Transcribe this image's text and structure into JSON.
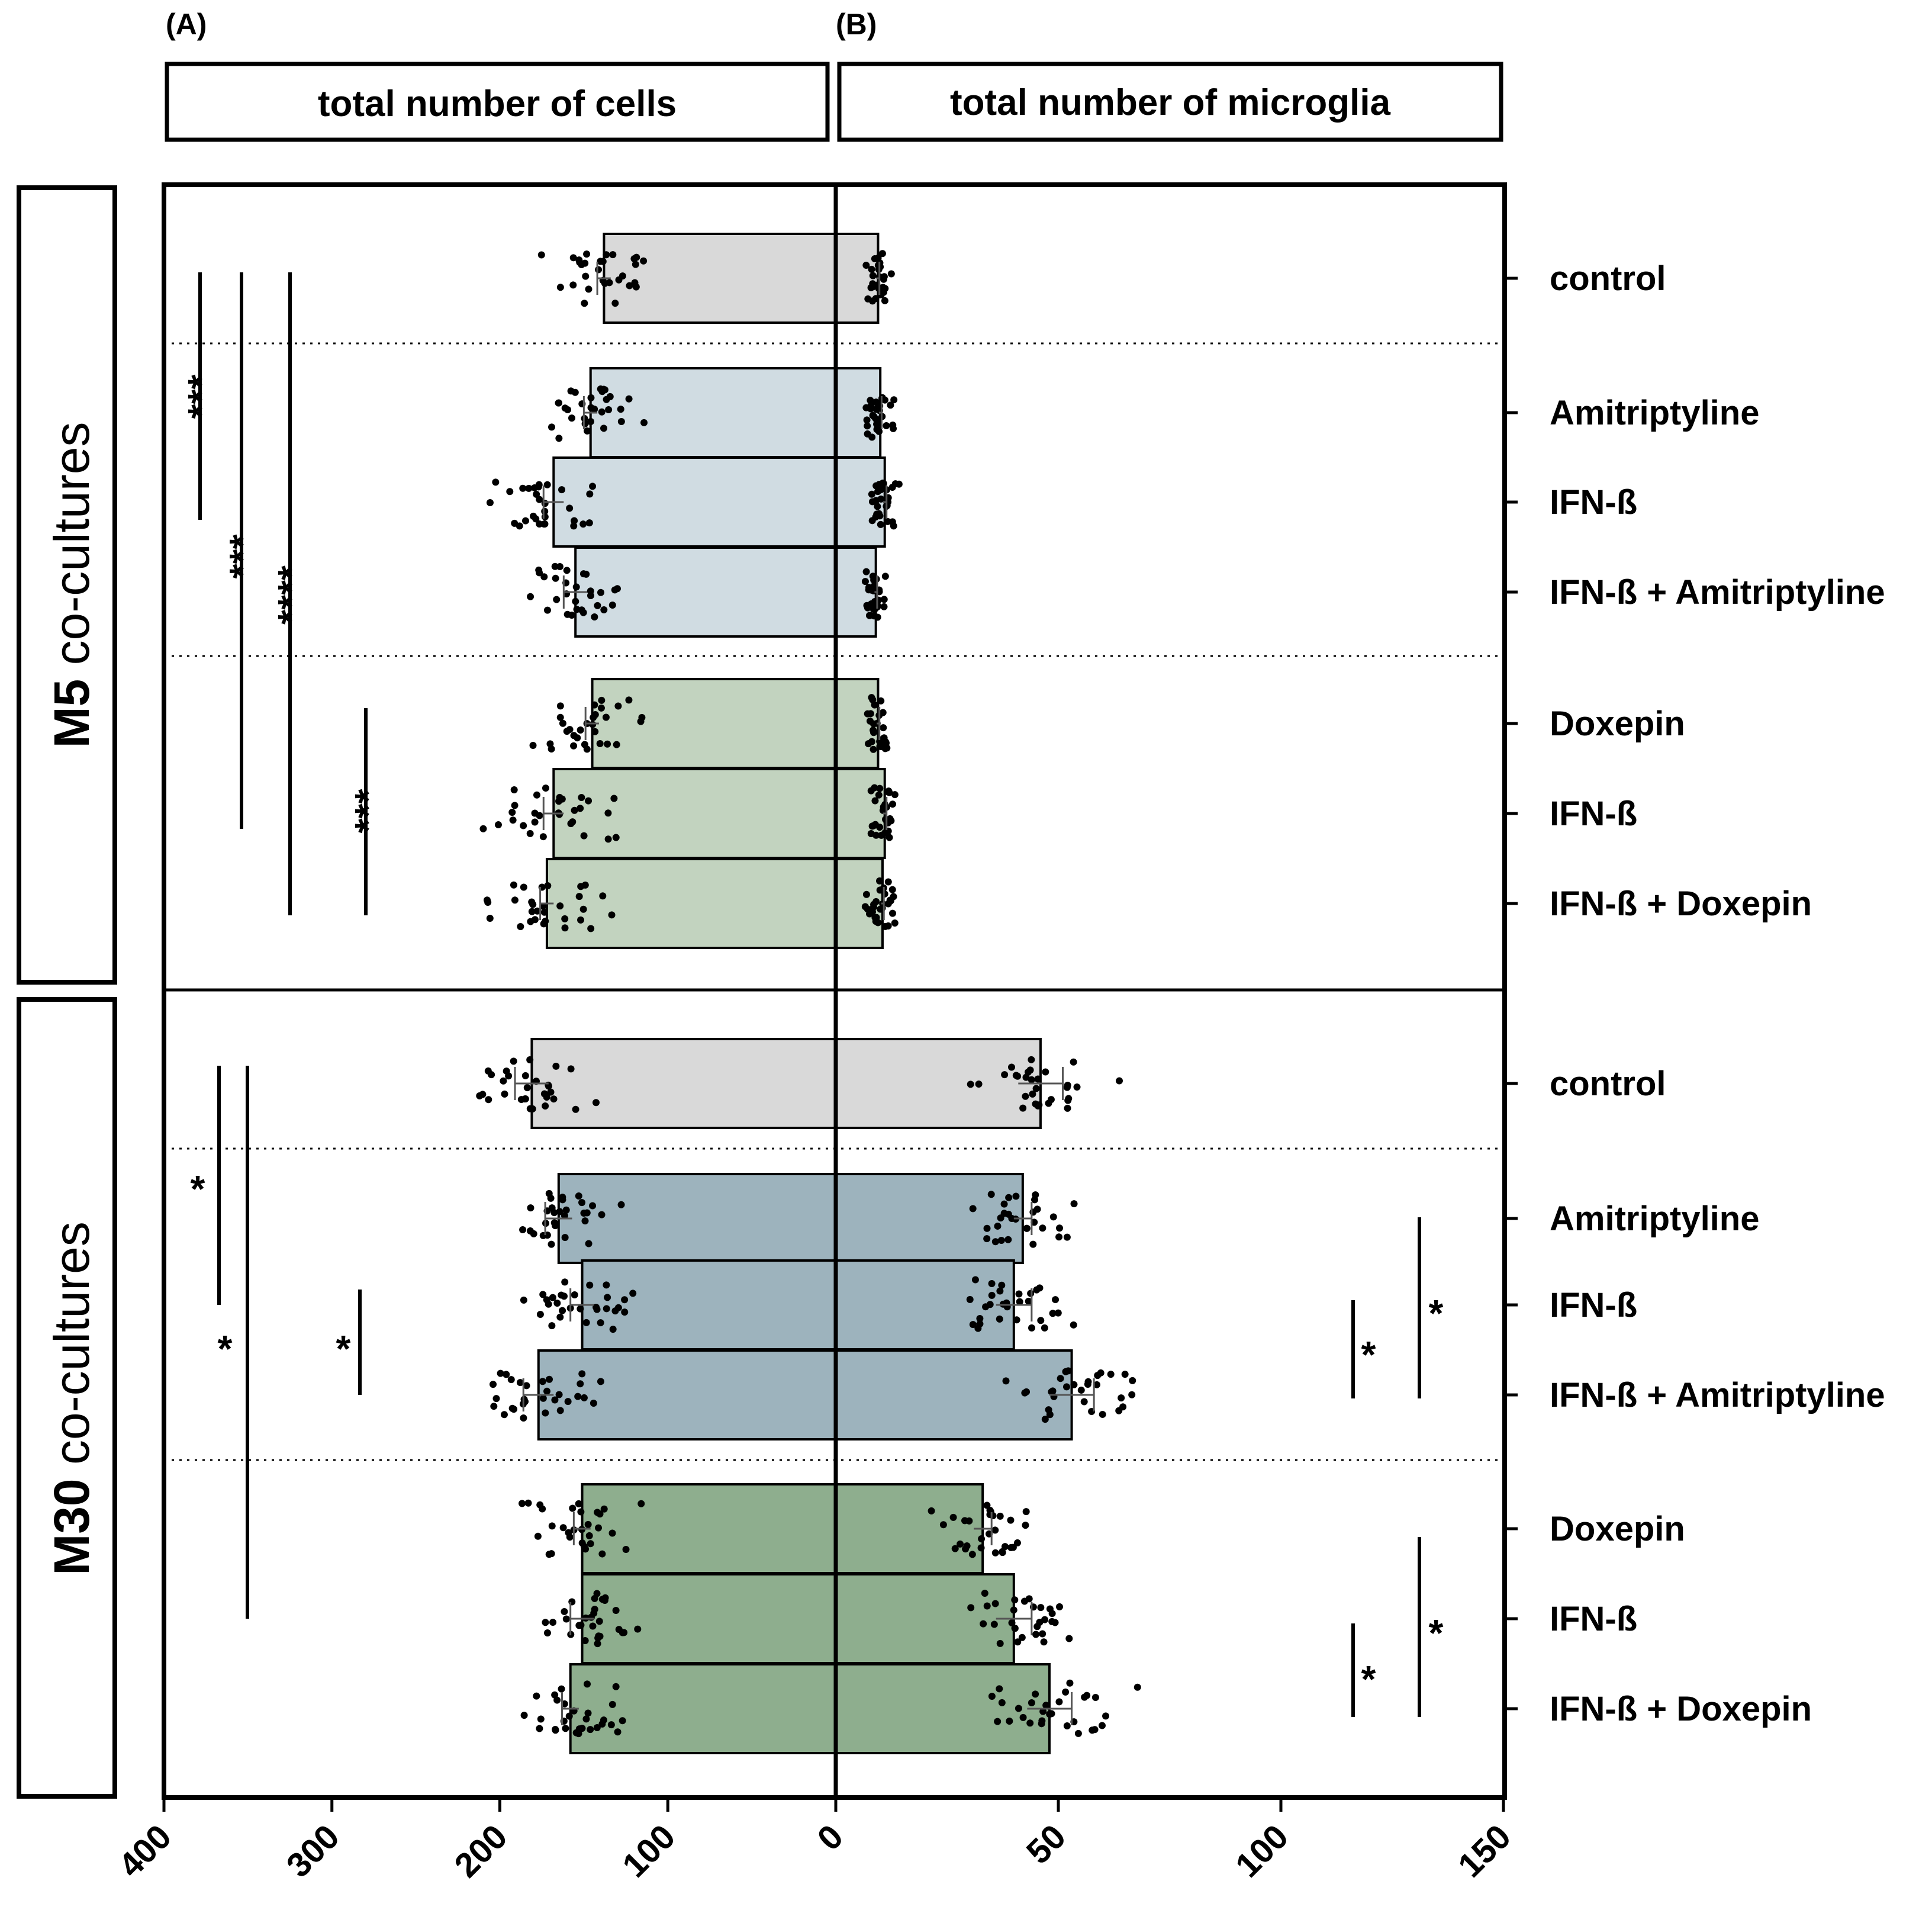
{
  "chart_data": {
    "type": "bar",
    "orientation": "horizontal",
    "panels": [
      {
        "id": "A",
        "letter": "(A)",
        "title": "total number of cells",
        "xlim": [
          400,
          0
        ],
        "ticks": [
          "400",
          "300",
          "200",
          "100",
          "0"
        ]
      },
      {
        "id": "B",
        "letter": "(B)",
        "title": "total number of microglia",
        "xlim": [
          0,
          150
        ],
        "ticks": [
          "0",
          "50",
          "100",
          "150"
        ]
      }
    ],
    "groups": [
      {
        "id": "M5",
        "bold_label": "M5",
        "suffix_label": " co-cultures",
        "categories": [
          "control",
          "Amitriptyline",
          "IFN-ß",
          "IFN-ß + Amitriptyline",
          "Doxepin",
          "IFN-ß",
          "IFN-ß + Doxepin"
        ],
        "cells_mean": [
          138,
          146,
          168,
          155,
          145,
          168,
          172
        ],
        "cells_sem": [
          4,
          4,
          6,
          7,
          4,
          6,
          4
        ],
        "microglia_mean": [
          9.5,
          10,
          11,
          9,
          9.5,
          11,
          10.5
        ],
        "microglia_sem": [
          0.3,
          0.3,
          0.4,
          0.3,
          0.3,
          0.4,
          0.3
        ],
        "significance": [
          {
            "panel": "A",
            "label": "***",
            "from": "control",
            "to": "IFN-ß"
          },
          {
            "panel": "A",
            "label": "***",
            "from": "control",
            "to": "IFN-ß (Doxepin set)"
          },
          {
            "panel": "A",
            "label": "****",
            "from": "control",
            "to": "IFN-ß + Doxepin"
          },
          {
            "panel": "A",
            "label": "***",
            "from": "Doxepin",
            "to": "IFN-ß + Doxepin"
          }
        ]
      },
      {
        "id": "M30",
        "bold_label": "M30",
        "suffix_label": " co-cultures",
        "categories": [
          "control",
          "Amitriptyline",
          "IFN-ß",
          "IFN-ß + Amitriptyline",
          "Doxepin",
          "IFN-ß",
          "IFN-ß + Doxepin"
        ],
        "cells_mean": [
          181,
          165,
          151,
          177,
          151,
          151,
          158
        ],
        "cells_sem": [
          10,
          8,
          7,
          9,
          5,
          7,
          5
        ],
        "microglia_mean": [
          46,
          42,
          40,
          53,
          33,
          40,
          48
        ],
        "microglia_sem": [
          5,
          2,
          4,
          5,
          2,
          4,
          5
        ],
        "significance": [
          {
            "panel": "A",
            "label": "*",
            "from": "control",
            "to": "IFN-ß"
          },
          {
            "panel": "A",
            "label": "*",
            "from": "control",
            "to": "IFN-ß (Doxepin set)"
          },
          {
            "panel": "A",
            "label": "*",
            "from": "IFN-ß",
            "to": "IFN-ß + Amitriptyline"
          },
          {
            "panel": "B",
            "label": "*",
            "from": "IFN-ß",
            "to": "IFN-ß + Amitriptyline"
          },
          {
            "panel": "B",
            "label": "*",
            "from": "Amitriptyline",
            "to": "IFN-ß + Amitriptyline"
          },
          {
            "panel": "B",
            "label": "*",
            "from": "IFN-ß (Doxepin set)",
            "to": "IFN-ß + Doxepin"
          },
          {
            "panel": "B",
            "label": "*",
            "from": "Doxepin",
            "to": "IFN-ß + Doxepin"
          }
        ]
      }
    ],
    "colors": {
      "control": "#d9d9d9",
      "m5_amitriptyline": "#d0dce2",
      "m5_doxepin": "#c2d3bf",
      "m30_amitriptyline": "#9db3bd",
      "m30_doxepin": "#8eae8e",
      "outline": "#000000"
    }
  }
}
